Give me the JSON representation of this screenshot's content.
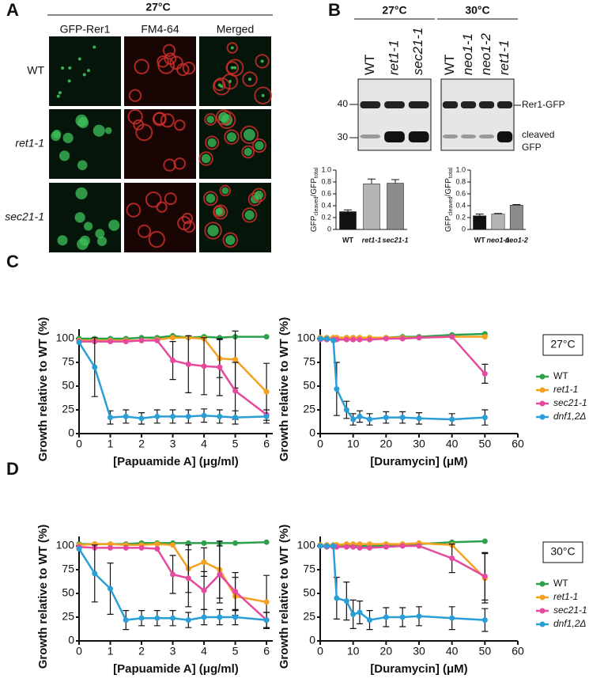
{
  "panel_labels": [
    "A",
    "B",
    "C",
    "D"
  ],
  "panel_a": {
    "temperature": "27°C",
    "columns": [
      "GFP-Rer1",
      "FM4-64",
      "Merged"
    ],
    "rows": [
      "WT",
      "ret1-1",
      "sec21-1"
    ]
  },
  "panel_b": {
    "blots": [
      {
        "temperature": "27°C",
        "lanes": [
          "WT",
          "ret1-1",
          "sec21-1"
        ]
      },
      {
        "temperature": "30°C",
        "lanes": [
          "WT",
          "neo1-1",
          "neo1-2",
          "ret1-1"
        ]
      }
    ],
    "markers": [
      "40",
      "30"
    ],
    "band_labels": [
      "Rer1-GFP",
      "cleaved",
      "GFP"
    ]
  },
  "chart_data": [
    {
      "type": "bar",
      "ylabel": [
        "GFP",
        "cleaved",
        "/GFP",
        "total"
      ],
      "categories": [
        "WT",
        "ret1-1",
        "sec21-1"
      ],
      "values": [
        0.3,
        0.77,
        0.78
      ],
      "errors": [
        0.03,
        0.08,
        0.06
      ],
      "colors": [
        "#111111",
        "#b4b4b4",
        "#8c8c8c"
      ],
      "ylim": [
        0,
        1
      ],
      "yticks": [
        0,
        0.2,
        0.4,
        0.6,
        0.8,
        {
          "value": 1,
          "label": "1.0"
        }
      ]
    },
    {
      "type": "bar",
      "ylabel": [
        "GFP",
        "cleaved",
        "/GFP",
        "total"
      ],
      "categories": [
        "WT",
        "neo1-1",
        "neo1-2"
      ],
      "values": [
        0.23,
        0.26,
        0.41
      ],
      "errors": [
        0.03,
        0.01,
        0.01
      ],
      "colors": [
        "#111111",
        "#b4b4b4",
        "#8c8c8c"
      ],
      "ylim": [
        0,
        1
      ],
      "yticks": [
        0,
        0.2,
        0.4,
        0.6,
        0.8,
        {
          "value": 1,
          "label": "1.0"
        }
      ]
    },
    {
      "type": "line",
      "xlabel": "[Papuamide A] (μg/ml)",
      "ylabel": "Growth relative to WT (%)",
      "x": [
        0,
        0.5,
        1,
        1.5,
        2,
        2.5,
        3,
        3.5,
        4,
        4.5,
        5,
        6
      ],
      "xlim": [
        0,
        6.2
      ],
      "xticks": [
        0,
        1,
        2,
        3,
        4,
        5,
        6
      ],
      "ylim": [
        0,
        110
      ],
      "yticks": [
        0,
        25,
        50,
        75,
        100
      ],
      "series": [
        {
          "name": "WT",
          "color": "#2ea04a",
          "values": [
            100,
            100,
            100,
            100,
            101,
            101,
            103,
            101,
            102,
            101,
            102,
            102
          ]
        },
        {
          "name": "ret1-1",
          "color": "#f5a01e",
          "values": [
            98,
            98,
            98,
            98,
            98,
            99,
            101,
            101,
            100,
            79,
            78,
            44
          ],
          "errors": [
            null,
            null,
            null,
            null,
            null,
            null,
            null,
            null,
            null,
            20,
            30,
            30
          ]
        },
        {
          "name": "sec21-1",
          "color": "#e54a9f",
          "values": [
            97,
            97,
            97,
            97,
            98,
            98,
            77,
            73,
            71,
            70,
            45,
            20
          ],
          "errors": [
            null,
            null,
            null,
            null,
            null,
            null,
            20,
            30,
            30,
            30,
            30,
            null
          ]
        },
        {
          "name": "dnf1,2Δ",
          "color": "#2a9ed6",
          "values": [
            96,
            70,
            17,
            18,
            16,
            18,
            18,
            18,
            19,
            18,
            17,
            18
          ],
          "errors": [
            null,
            31,
            7,
            7,
            6,
            7,
            7,
            7,
            7,
            7,
            7,
            7
          ]
        }
      ]
    },
    {
      "type": "line",
      "xlabel": "[Duramycin] (μM)",
      "ylabel": "Growth relative to WT (%)",
      "legend_title": "27°C",
      "x": [
        0,
        2,
        4,
        5,
        8,
        10,
        12,
        15,
        20,
        25,
        30,
        40,
        50
      ],
      "xlim": [
        0,
        60
      ],
      "xticks": [
        0,
        10,
        20,
        30,
        40,
        50,
        60
      ],
      "ylim": [
        0,
        110
      ],
      "yticks": [
        0,
        25,
        50,
        75,
        100
      ],
      "series": [
        {
          "name": "WT",
          "color": "#2ea04a",
          "values": [
            101,
            101,
            101,
            101,
            101,
            101,
            101,
            101,
            101,
            102,
            102,
            104,
            105
          ]
        },
        {
          "name": "ret1-1",
          "color": "#f5a01e",
          "values": [
            101,
            101,
            101,
            101,
            101,
            101,
            101,
            101,
            101,
            101,
            101,
            102,
            102
          ]
        },
        {
          "name": "sec21-1",
          "color": "#e54a9f",
          "values": [
            99,
            99,
            99,
            99,
            99,
            99,
            99,
            99,
            100,
            100,
            101,
            102,
            63
          ],
          "errors": [
            null,
            null,
            null,
            null,
            null,
            null,
            null,
            null,
            null,
            null,
            null,
            null,
            10
          ]
        },
        {
          "name": "dnf1,2Δ",
          "color": "#2a9ed6",
          "values": [
            100,
            100,
            98,
            47,
            25,
            15,
            18,
            15,
            17,
            17,
            16,
            15,
            17
          ],
          "errors": [
            null,
            null,
            null,
            28,
            9,
            6,
            6,
            6,
            6,
            6,
            6,
            6,
            8
          ]
        }
      ]
    },
    {
      "type": "line",
      "xlabel": "[Papuamide A] (μg/ml)",
      "ylabel": "Growth relative to WT (%)",
      "x": [
        0,
        0.5,
        1,
        1.5,
        2,
        2.5,
        3,
        3.5,
        4,
        4.5,
        5,
        6
      ],
      "xlim": [
        0,
        6.2
      ],
      "xticks": [
        0,
        1,
        2,
        3,
        4,
        5,
        6
      ],
      "ylim": [
        0,
        110
      ],
      "yticks": [
        0,
        25,
        50,
        75,
        100
      ],
      "series": [
        {
          "name": "WT",
          "color": "#2ea04a",
          "values": [
            102,
            102,
            102,
            102,
            103,
            103,
            103,
            103,
            103,
            103,
            103,
            104
          ]
        },
        {
          "name": "ret1-1",
          "color": "#f5a01e",
          "values": [
            101,
            102,
            102,
            101,
            101,
            102,
            101,
            76,
            83,
            75,
            47,
            41
          ],
          "errors": [
            null,
            null,
            null,
            null,
            null,
            null,
            null,
            25,
            15,
            30,
            20,
            28
          ]
        },
        {
          "name": "sec21-1",
          "color": "#e54a9f",
          "values": [
            99,
            98,
            98,
            98,
            98,
            97,
            70,
            66,
            53,
            70,
            52,
            22
          ],
          "errors": [
            null,
            null,
            null,
            null,
            null,
            null,
            20,
            30,
            20,
            30,
            20,
            8
          ]
        },
        {
          "name": "dnf1,2Δ",
          "color": "#2a9ed6",
          "values": [
            97,
            71,
            55,
            22,
            24,
            24,
            24,
            22,
            25,
            25,
            25,
            22
          ],
          "errors": [
            null,
            30,
            27,
            10,
            8,
            8,
            8,
            8,
            8,
            8,
            8,
            8
          ]
        }
      ]
    },
    {
      "type": "line",
      "xlabel": "[Duramycin] (μM)",
      "ylabel": "Growth relative to WT (%)",
      "legend_title": "30°C",
      "x": [
        0,
        2,
        4,
        5,
        8,
        10,
        12,
        15,
        20,
        25,
        30,
        40,
        50
      ],
      "xlim": [
        0,
        60
      ],
      "xticks": [
        0,
        10,
        20,
        30,
        40,
        50,
        60
      ],
      "ylim": [
        0,
        110
      ],
      "yticks": [
        0,
        25,
        50,
        75,
        100
      ],
      "series": [
        {
          "name": "WT",
          "color": "#2ea04a",
          "values": [
            101,
            101,
            101,
            101,
            101,
            101,
            100,
            100,
            100,
            101,
            102,
            104,
            105
          ]
        },
        {
          "name": "ret1-1",
          "color": "#f5a01e",
          "values": [
            101,
            101,
            101,
            101,
            102,
            102,
            102,
            102,
            102,
            102,
            103,
            101,
            66
          ],
          "errors": [
            null,
            null,
            null,
            null,
            null,
            null,
            null,
            null,
            null,
            null,
            null,
            null,
            26
          ]
        },
        {
          "name": "sec21-1",
          "color": "#e54a9f",
          "values": [
            100,
            99,
            99,
            99,
            99,
            99,
            98,
            98,
            99,
            100,
            100,
            87,
            68
          ],
          "errors": [
            null,
            null,
            null,
            null,
            null,
            null,
            null,
            null,
            null,
            null,
            null,
            15,
            25
          ]
        },
        {
          "name": "dnf1,2Δ",
          "color": "#2a9ed6",
          "values": [
            100,
            100,
            100,
            45,
            42,
            28,
            30,
            22,
            25,
            25,
            26,
            24,
            22
          ],
          "errors": [
            null,
            null,
            null,
            22,
            20,
            15,
            12,
            10,
            10,
            10,
            10,
            12,
            12
          ]
        }
      ]
    }
  ]
}
